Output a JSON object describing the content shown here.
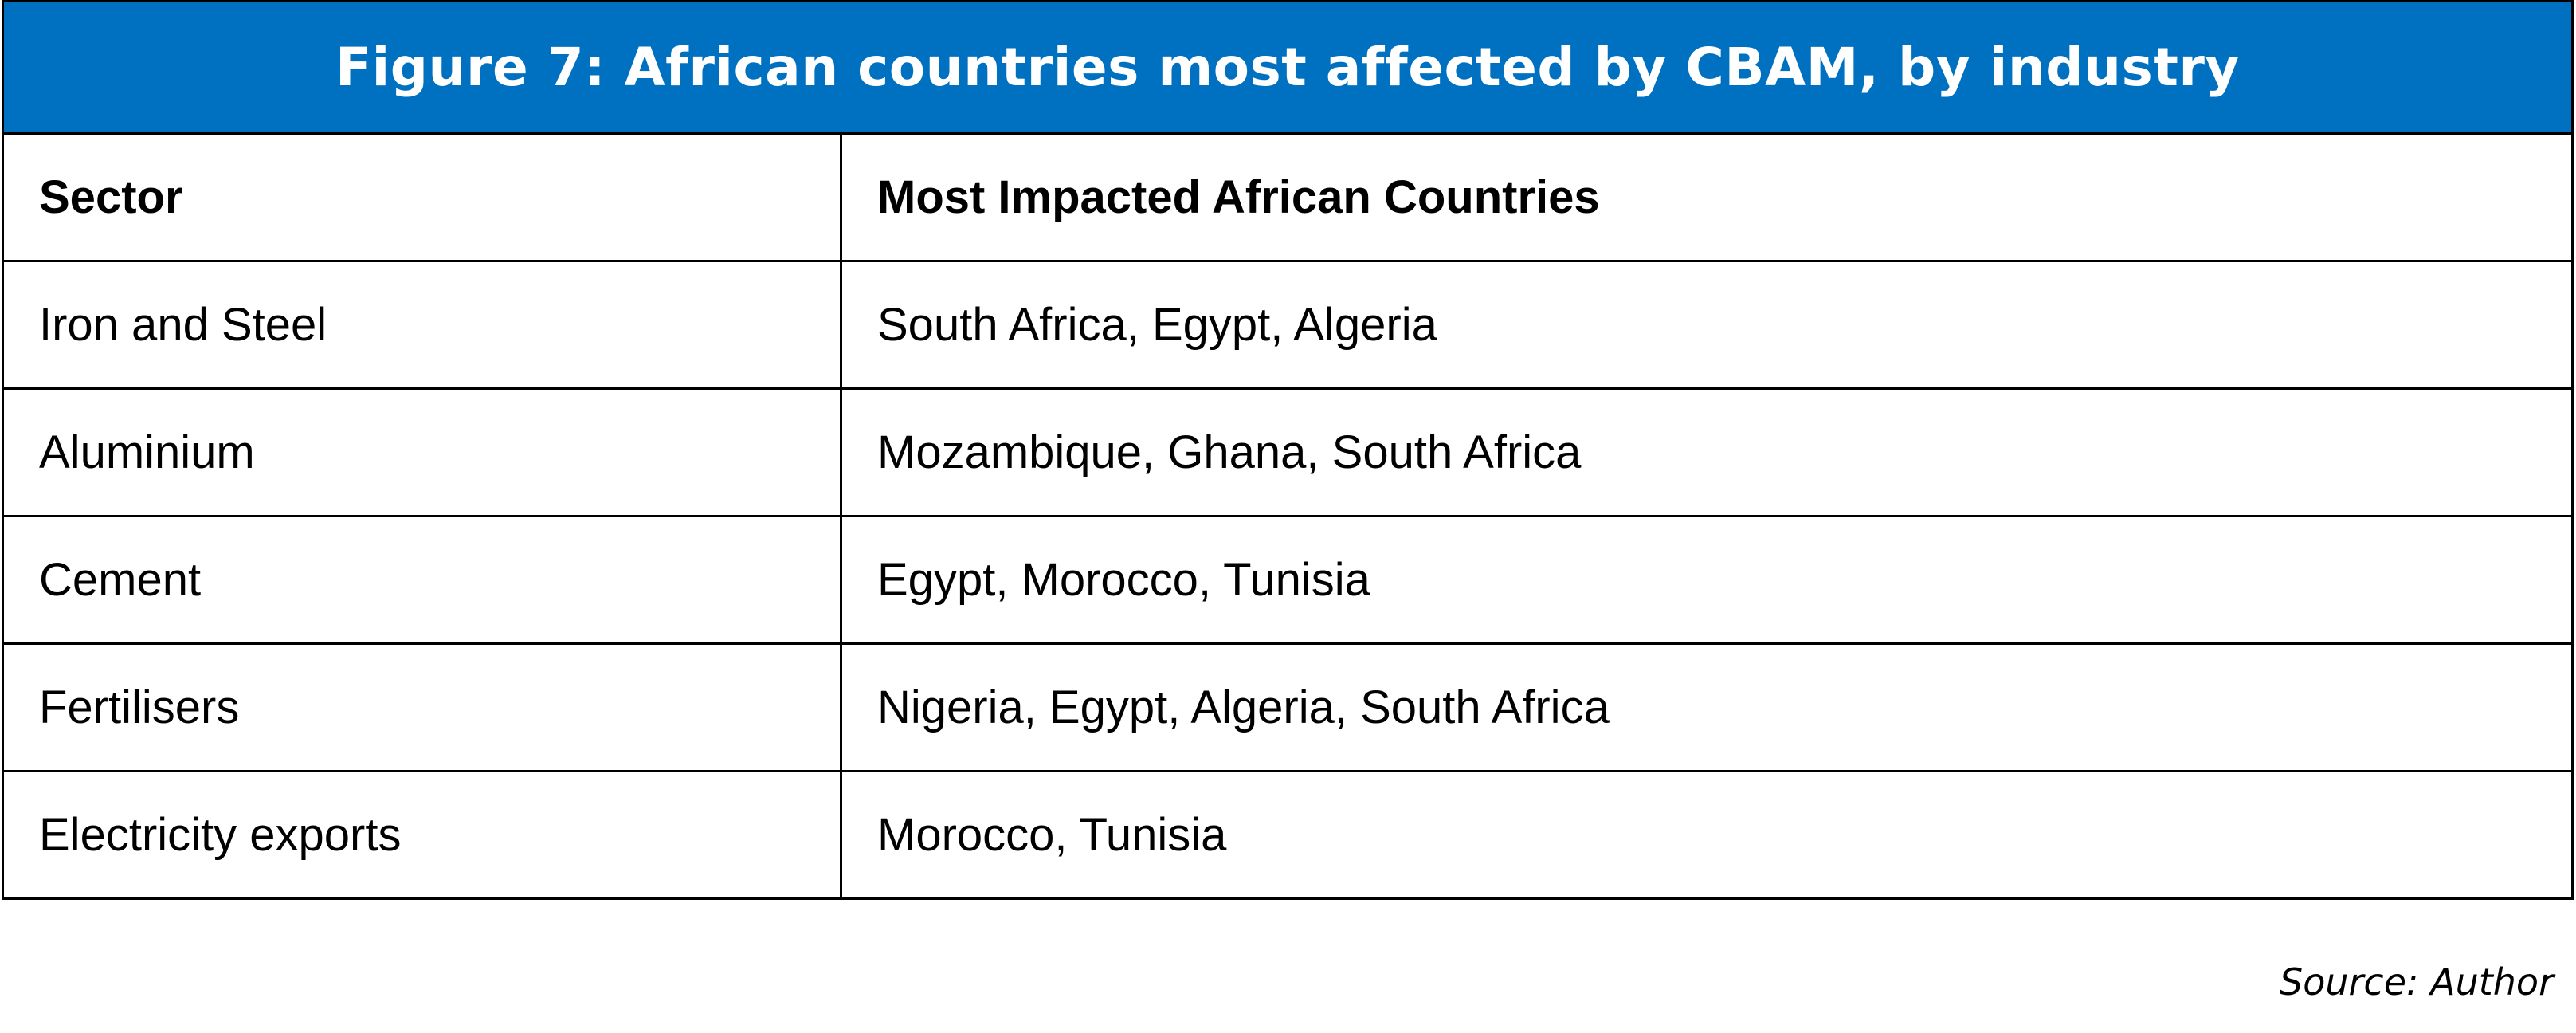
{
  "figure": {
    "title": "Figure 7: African countries most affected by CBAM, by industry",
    "title_background": "#0070c0",
    "title_color": "#ffffff"
  },
  "table": {
    "headers": [
      "Sector",
      "Most Impacted African Countries"
    ],
    "rows": [
      [
        "Iron and Steel",
        "South Africa, Egypt, Algeria"
      ],
      [
        "Aluminium",
        "Mozambique, Ghana, South Africa"
      ],
      [
        "Cement",
        "Egypt, Morocco, Tunisia"
      ],
      [
        "Fertilisers",
        "Nigeria, Egypt, Algeria, South Africa"
      ],
      [
        "Electricity exports",
        "Morocco, Tunisia"
      ]
    ]
  },
  "source": "Source: Author"
}
